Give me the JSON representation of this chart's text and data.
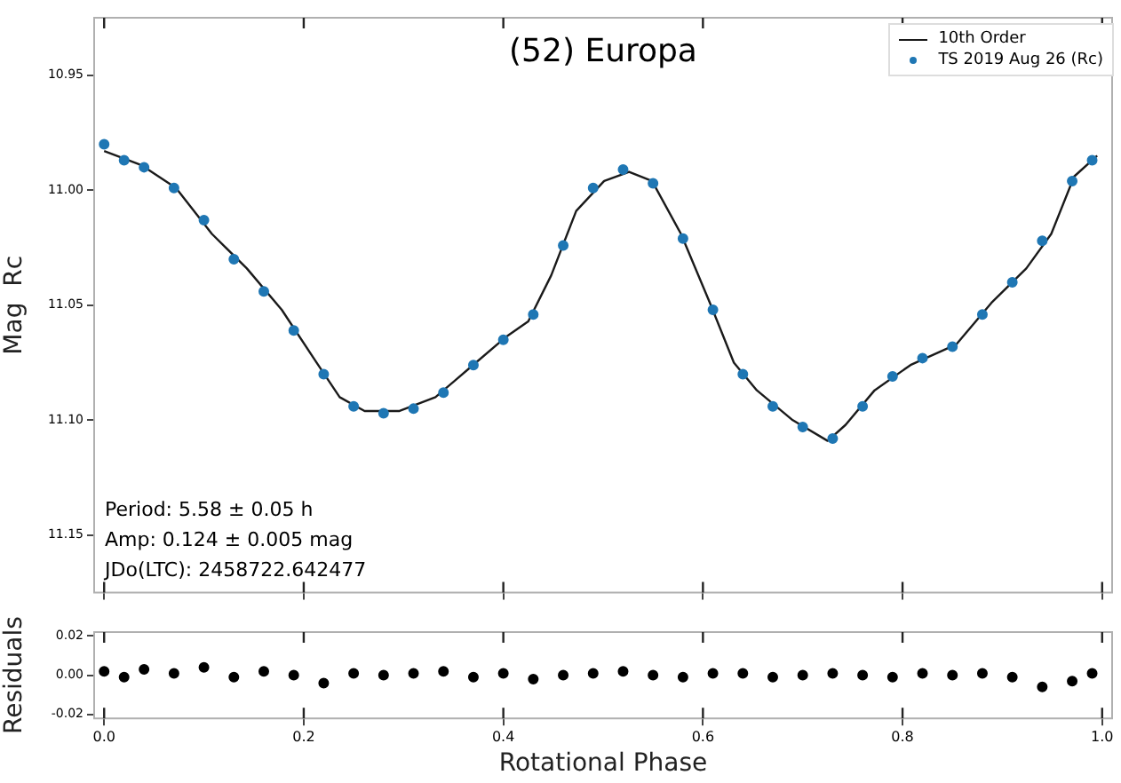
{
  "chart_data": [
    {
      "type": "scatter",
      "title": "(52) Europa",
      "ylabel": "Mag  Rc",
      "legend": "top right",
      "tick_labels": "y",
      "grid": false,
      "marker": "circle",
      "xlim": [
        -0.01,
        1.01
      ],
      "ylim": [
        11.175,
        10.925
      ],
      "xticks": [
        {
          "value": 0,
          "label": null
        },
        {
          "value": 0.2,
          "label": null
        },
        {
          "value": 0.4,
          "label": null
        },
        {
          "value": 0.6,
          "label": null
        },
        {
          "value": 0.8,
          "label": null
        },
        {
          "value": 1,
          "label": null
        }
      ],
      "yticks": [
        10.95,
        {
          "value": 11,
          "label": "11.00"
        },
        11.05,
        {
          "value": 11.1,
          "label": "11.10"
        },
        11.15
      ],
      "series": [
        {
          "name": "10th Order",
          "type": "line",
          "marker": "none",
          "color": "#1a1a1a",
          "x": [
            0.0,
            0.037,
            0.072,
            0.108,
            0.143,
            0.178,
            0.213,
            0.236,
            0.261,
            0.296,
            0.332,
            0.367,
            0.402,
            0.425,
            0.448,
            0.473,
            0.501,
            0.526,
            0.549,
            0.578,
            0.607,
            0.631,
            0.654,
            0.69,
            0.725,
            0.743,
            0.772,
            0.808,
            0.854,
            0.889,
            0.924,
            0.949,
            0.972,
            0.995
          ],
          "values": [
            10.983,
            10.989,
            10.999,
            11.019,
            11.034,
            11.052,
            11.075,
            11.09,
            11.096,
            11.096,
            11.09,
            11.077,
            11.064,
            11.057,
            11.037,
            11.009,
            10.996,
            10.992,
            10.996,
            11.019,
            11.049,
            11.075,
            11.087,
            11.1,
            11.109,
            11.102,
            11.087,
            11.076,
            11.067,
            11.049,
            11.034,
            11.019,
            10.994,
            10.985
          ]
        },
        {
          "name": "TS 2019 Aug 26  (Rc)",
          "type": "scatter",
          "color": "#1f77b4",
          "x": [
            0.0,
            0.02,
            0.04,
            0.07,
            0.1,
            0.13,
            0.16,
            0.19,
            0.22,
            0.25,
            0.28,
            0.31,
            0.34,
            0.37,
            0.4,
            0.43,
            0.46,
            0.49,
            0.52,
            0.55,
            0.58,
            0.61,
            0.64,
            0.67,
            0.7,
            0.73,
            0.76,
            0.79,
            0.82,
            0.85,
            0.88,
            0.91,
            0.94,
            0.97,
            0.99
          ],
          "values": [
            10.98,
            10.987,
            10.99,
            10.999,
            11.013,
            11.03,
            11.044,
            11.061,
            11.08,
            11.094,
            11.097,
            11.095,
            11.088,
            11.076,
            11.065,
            11.054,
            11.024,
            10.999,
            10.991,
            10.997,
            11.021,
            11.052,
            11.08,
            11.094,
            11.103,
            11.108,
            11.094,
            11.081,
            11.073,
            11.068,
            11.054,
            11.04,
            11.022,
            10.996,
            10.987
          ],
          "errors": [
            0.002,
            0.002,
            0.002,
            0.002,
            0.002,
            0.002,
            0.002,
            0.002,
            0.002,
            0.002,
            0.002,
            0.002,
            0.002,
            0.002,
            0.002,
            0.002,
            0.002,
            0.002,
            0.002,
            0.002,
            0.002,
            0.002,
            0.002,
            0.002,
            0.002,
            0.002,
            0.002,
            0.002,
            0.002,
            0.002,
            0.002,
            0.002,
            0.002,
            0.002,
            0.002
          ]
        }
      ],
      "annotations": [
        "Period: 5.58 ± 0.05 h",
        "Amp: 0.124 ± 0.005 mag",
        "JDo(LTC): 2458722.642477"
      ]
    },
    {
      "type": "scatter",
      "xlabel": "Rotational Phase",
      "ylabel": "Residuals",
      "grid": false,
      "marker": "circle",
      "color": "#000000",
      "xlim": [
        -0.01,
        1.01
      ],
      "ylim": [
        -0.022,
        0.022
      ],
      "xticks": [
        {
          "value": 0,
          "label": "0.0"
        },
        0.2,
        0.4,
        0.6,
        0.8,
        {
          "value": 1,
          "label": "1.0"
        }
      ],
      "yticks": [
        -0.02,
        {
          "value": 0,
          "label": "0.00"
        },
        0.02
      ],
      "x": [
        0.0,
        0.02,
        0.04,
        0.07,
        0.1,
        0.13,
        0.16,
        0.19,
        0.22,
        0.25,
        0.28,
        0.31,
        0.34,
        0.37,
        0.4,
        0.43,
        0.46,
        0.49,
        0.52,
        0.55,
        0.58,
        0.61,
        0.64,
        0.67,
        0.7,
        0.73,
        0.76,
        0.79,
        0.82,
        0.85,
        0.88,
        0.91,
        0.94,
        0.97,
        0.99
      ],
      "values": [
        0.002,
        -0.001,
        0.003,
        0.001,
        0.004,
        -0.001,
        0.002,
        0.0,
        -0.004,
        0.001,
        0.0,
        0.001,
        0.002,
        -0.001,
        0.001,
        -0.002,
        0.0,
        0.001,
        0.002,
        0.0,
        -0.001,
        0.001,
        0.001,
        -0.001,
        0.0,
        0.001,
        0.0,
        -0.001,
        0.001,
        0.0,
        0.001,
        -0.001,
        -0.006,
        -0.003,
        0.001
      ]
    }
  ]
}
